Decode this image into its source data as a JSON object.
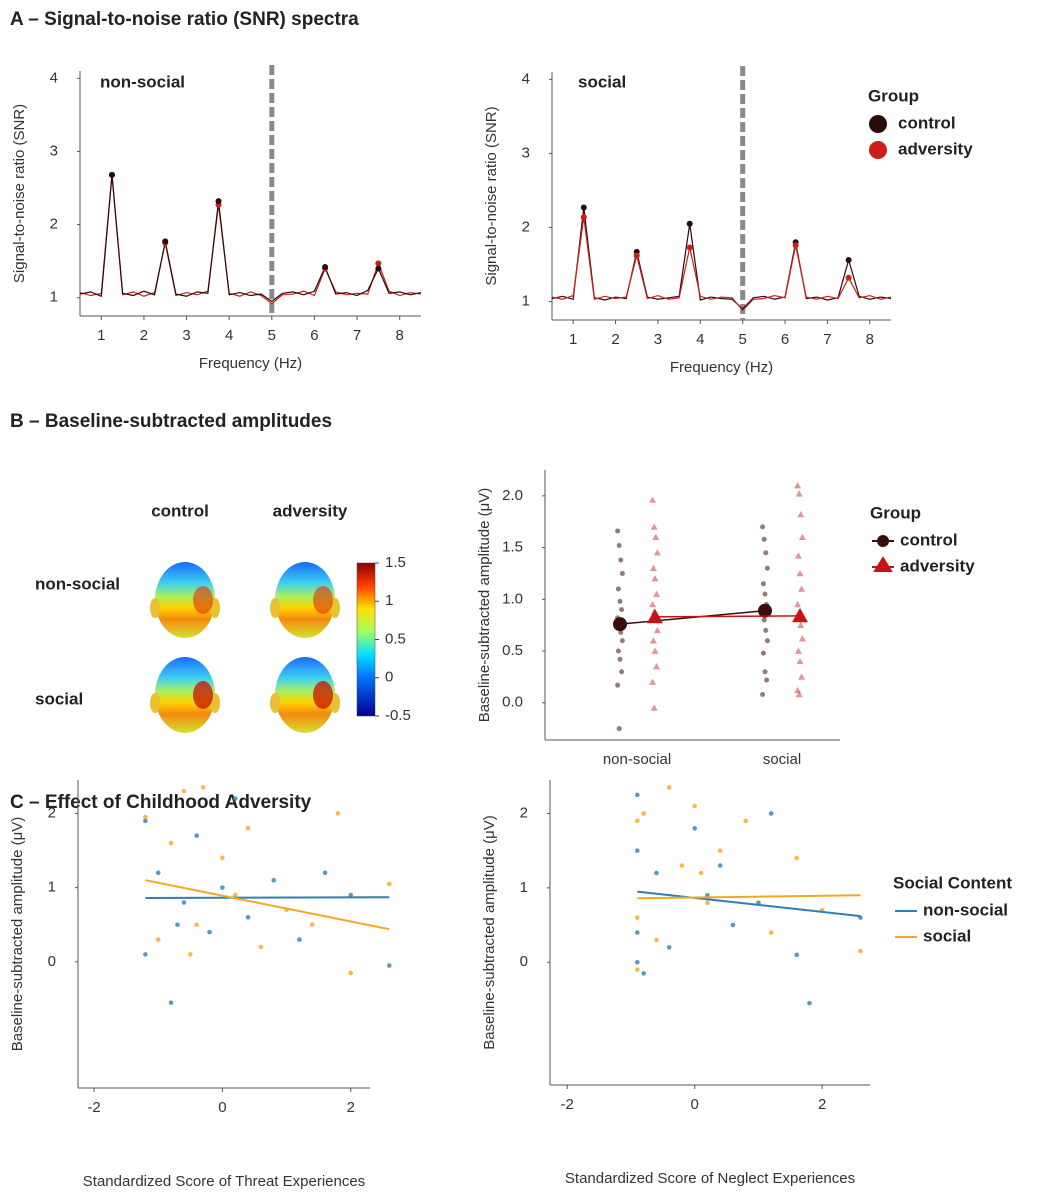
{
  "sections": [
    {
      "title": "A – Signal-to-noise ratio (SNR) spectra"
    },
    {
      "title": "B – Baseline-subtracted amplitudes"
    },
    {
      "title": "C – Effect of Childhood Adversity"
    }
  ],
  "chart_data": [
    {
      "type": "line",
      "title": "non-social",
      "ylabel": "Signal-to-noise ratio (SNR)",
      "xlabel": "Frequency (Hz)",
      "x": [
        0.5,
        0.75,
        1,
        1.25,
        1.5,
        1.75,
        2,
        2.25,
        2.5,
        2.75,
        3,
        3.25,
        3.5,
        3.75,
        4,
        4.25,
        4.5,
        4.75,
        5,
        5.25,
        5.5,
        5.75,
        6,
        6.25,
        6.5,
        6.75,
        7,
        7.25,
        7.5,
        7.75,
        8,
        8.25,
        8.5
      ],
      "series": [
        {
          "color": "#cc1f1a",
          "values": [
            1.07,
            1.03,
            1.06,
            2.68,
            1.04,
            1.08,
            1.02,
            1.07,
            1.75,
            1.03,
            1.07,
            1.04,
            1.09,
            2.27,
            1.06,
            1.02,
            1.08,
            1.03,
            0.92,
            1.04,
            1.05,
            1.09,
            1.03,
            1.4,
            1.08,
            1.04,
            1.06,
            1.05,
            1.47,
            1.09,
            1.03,
            1.07,
            1.05
          ]
        },
        {
          "color": "#2a0a0a",
          "values": [
            1.05,
            1.08,
            1.02,
            2.68,
            1.06,
            1.03,
            1.09,
            1.04,
            1.77,
            1.05,
            1.02,
            1.08,
            1.06,
            2.32,
            1.04,
            1.07,
            1.03,
            1.05,
            0.95,
            1.06,
            1.08,
            1.04,
            1.09,
            1.42,
            1.05,
            1.07,
            1.03,
            1.1,
            1.4,
            1.06,
            1.08,
            1.04,
            1.07
          ]
        }
      ],
      "harmonics": [
        1.25,
        2.5,
        3.75,
        6.25,
        7.5
      ],
      "marker_line": 5,
      "xlim": [
        0.5,
        8.5
      ],
      "ylim": [
        0.75,
        4.1
      ],
      "xticks": [
        1,
        2,
        3,
        4,
        5,
        6,
        7,
        8
      ],
      "yticks": [
        1,
        2,
        3,
        4
      ]
    },
    {
      "type": "line",
      "title": "social",
      "ylabel": "Signal-to-noise ratio (SNR)",
      "xlabel": "Frequency (Hz)",
      "x": [
        0.5,
        0.75,
        1,
        1.25,
        1.5,
        1.75,
        2,
        2.25,
        2.5,
        2.75,
        3,
        3.25,
        3.5,
        3.75,
        4,
        4.25,
        4.5,
        4.75,
        5,
        5.25,
        5.5,
        5.75,
        6,
        6.25,
        6.5,
        6.75,
        7,
        7.25,
        7.5,
        7.75,
        8,
        8.25,
        8.5
      ],
      "legend_title": "Group",
      "series": [
        {
          "name": "control",
          "color": "#2a0a0a",
          "values": [
            1.04,
            1.07,
            1.03,
            2.27,
            1.05,
            1.02,
            1.06,
            1.04,
            1.67,
            1.06,
            1.03,
            1.05,
            1.07,
            2.05,
            1.02,
            1.06,
            1.04,
            1.03,
            0.9,
            1.05,
            1.07,
            1.03,
            1.06,
            1.8,
            1.04,
            1.06,
            1.02,
            1.05,
            1.56,
            1.07,
            1.03,
            1.06,
            1.04
          ]
        },
        {
          "name": "adversity",
          "color": "#cc1f1a",
          "values": [
            1.06,
            1.03,
            1.08,
            2.14,
            1.03,
            1.07,
            1.04,
            1.06,
            1.62,
            1.04,
            1.08,
            1.03,
            1.05,
            1.73,
            1.07,
            1.03,
            1.06,
            1.05,
            0.88,
            1.03,
            1.04,
            1.08,
            1.05,
            1.76,
            1.06,
            1.03,
            1.07,
            1.04,
            1.32,
            1.05,
            1.08,
            1.03,
            1.06
          ]
        }
      ],
      "harmonics": [
        1.25,
        2.5,
        3.75,
        6.25,
        7.5
      ],
      "marker_line": 5,
      "xlim": [
        0.5,
        8.5
      ],
      "ylim": [
        0.75,
        4.1
      ],
      "xticks": [
        1,
        2,
        3,
        4,
        5,
        6,
        7,
        8
      ],
      "yticks": [
        1,
        2,
        3,
        4
      ]
    },
    {
      "type": "topomap",
      "col_labels": [
        "control",
        "adversity"
      ],
      "row_labels": [
        "non-social",
        "social"
      ],
      "clim": [
        -0.5,
        1.5
      ],
      "cticks": [
        -0.5,
        0,
        0.5,
        1,
        1.5
      ]
    },
    {
      "type": "dot",
      "ylabel": "Baseline-subtracted amplitude (μV)",
      "categories": [
        "non-social",
        "social"
      ],
      "legend_title": "Group",
      "series": [
        {
          "name": "control",
          "color": "#3d0c0c",
          "marker": "circle",
          "values": [
            0.76,
            0.89
          ],
          "points": [
            [
              1.66,
              1.52,
              1.38,
              1.25,
              1.1,
              0.98,
              0.9,
              0.82,
              0.75,
              0.68,
              0.6,
              0.5,
              0.42,
              0.3,
              0.17,
              -0.25
            ],
            [
              1.7,
              1.58,
              1.45,
              1.3,
              1.15,
              1.05,
              0.95,
              0.88,
              0.8,
              0.7,
              0.6,
              0.48,
              0.3,
              0.22,
              0.08
            ]
          ]
        },
        {
          "name": "adversity",
          "color": "#c41414",
          "marker": "triangle",
          "values": [
            0.83,
            0.84
          ],
          "points": [
            [
              1.96,
              1.7,
              1.6,
              1.45,
              1.3,
              1.2,
              1.05,
              0.95,
              0.88,
              0.8,
              0.7,
              0.6,
              0.5,
              0.35,
              0.2,
              -0.05
            ],
            [
              2.1,
              2.02,
              1.82,
              1.6,
              1.42,
              1.25,
              1.1,
              0.95,
              0.85,
              0.75,
              0.62,
              0.5,
              0.4,
              0.25,
              0.12,
              0.08
            ]
          ]
        }
      ],
      "ylim": [
        -0.36,
        2.25
      ],
      "yticks": [
        {
          "value": 0,
          "label": "0.0"
        },
        0.5,
        {
          "value": 1,
          "label": "1.0"
        },
        1.5,
        {
          "value": 2,
          "label": "2.0"
        }
      ]
    },
    {
      "type": "scatter",
      "xlabel": "Standardized Score of Threat Experiences",
      "ylabel": "Baseline-subtracted amplitude (μV)",
      "series": [
        {
          "color": "#2f7fb0",
          "x": [
            -1.2,
            -1.2,
            -1,
            -0.8,
            -0.6,
            -0.4,
            -0.2,
            0,
            0.2,
            0.4,
            0.8,
            1.2,
            1.6,
            2,
            2.6,
            -0.7
          ],
          "values": [
            1.9,
            0.1,
            1.2,
            -0.55,
            0.8,
            1.7,
            0.4,
            1.0,
            2.2,
            0.6,
            1.1,
            0.3,
            1.2,
            0.9,
            -0.05,
            0.5
          ],
          "fit": {
            "x": [
              -1.2,
              2.6
            ],
            "values": [
              0.86,
              0.87
            ]
          }
        },
        {
          "color": "#f5a623",
          "x": [
            -1.2,
            -1,
            -0.8,
            -0.6,
            -0.4,
            -0.3,
            0,
            0.2,
            0.4,
            0.6,
            1,
            1.4,
            1.8,
            2,
            2.6,
            -0.5
          ],
          "values": [
            1.95,
            0.3,
            1.6,
            2.3,
            0.5,
            2.35,
            1.4,
            0.9,
            1.8,
            0.2,
            0.7,
            0.5,
            2.0,
            -0.15,
            1.05,
            0.1
          ],
          "fit": {
            "x": [
              -1.2,
              2.6
            ],
            "values": [
              1.1,
              0.44
            ]
          }
        }
      ],
      "xlim": [
        -2.25,
        2.3
      ],
      "ylim": [
        -1.7,
        2.45
      ],
      "xticks": [
        -2,
        0,
        2
      ],
      "yticks": [
        0,
        1,
        2
      ]
    },
    {
      "type": "scatter",
      "xlabel": "Standardized Score of Neglect Experiences",
      "ylabel": "Baseline-subtracted amplitude (μV)",
      "legend_title": "Social Content",
      "series": [
        {
          "name": "non-social",
          "color": "#2f7fb0",
          "x": [
            -0.9,
            -0.9,
            -0.9,
            -0.8,
            -0.6,
            -0.4,
            0,
            0.2,
            0.4,
            0.6,
            1,
            1.2,
            1.6,
            1.8,
            2.6,
            -0.9
          ],
          "values": [
            2.25,
            1.5,
            0.4,
            -0.15,
            1.2,
            0.2,
            1.8,
            0.9,
            1.3,
            0.5,
            0.8,
            2.0,
            0.1,
            -0.55,
            0.6,
            0.0
          ],
          "fit": {
            "x": [
              -0.9,
              2.6
            ],
            "values": [
              0.95,
              0.62
            ]
          }
        },
        {
          "name": "social",
          "color": "#f5a623",
          "x": [
            -0.9,
            -0.9,
            -0.8,
            -0.6,
            -0.4,
            -0.2,
            0,
            0.2,
            0.4,
            0.8,
            1.2,
            1.6,
            2,
            2.6,
            -0.9,
            0.1
          ],
          "values": [
            1.9,
            0.6,
            2.0,
            0.3,
            2.35,
            1.3,
            2.1,
            0.8,
            1.5,
            1.9,
            0.4,
            1.4,
            0.7,
            0.15,
            -0.1,
            1.2
          ],
          "fit": {
            "x": [
              -0.9,
              2.6
            ],
            "values": [
              0.86,
              0.9
            ]
          }
        }
      ],
      "xlim": [
        -2.27,
        2.75
      ],
      "ylim": [
        -1.65,
        2.45
      ],
      "xticks": [
        -2,
        0,
        2
      ],
      "yticks": [
        0,
        1,
        2
      ]
    }
  ]
}
